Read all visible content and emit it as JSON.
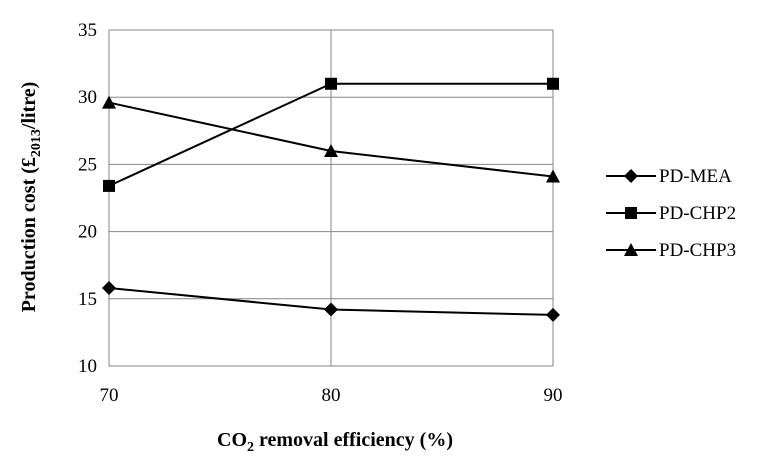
{
  "chart_data": {
    "type": "line",
    "x": [
      70,
      80,
      90
    ],
    "x_ticks": [
      "70",
      "80",
      "90"
    ],
    "y_ticks": [
      "10",
      "15",
      "20",
      "25",
      "30",
      "35"
    ],
    "xlim": [
      70,
      90
    ],
    "ylim": [
      10,
      35
    ],
    "grid": true,
    "legend_position": "right",
    "xlabel_parts": [
      "CO",
      "2",
      " removal efficiency (%)"
    ],
    "ylabel_parts": [
      "Production cost (£",
      "2013",
      "/litre)"
    ],
    "series": [
      {
        "name": "PD-MEA",
        "marker": "diamond",
        "values": [
          15.8,
          14.2,
          13.8
        ]
      },
      {
        "name": "PD-CHP2",
        "marker": "square",
        "values": [
          23.4,
          31.0,
          31.0
        ]
      },
      {
        "name": "PD-CHP3",
        "marker": "triangle",
        "values": [
          29.6,
          26.0,
          24.1
        ]
      }
    ]
  }
}
